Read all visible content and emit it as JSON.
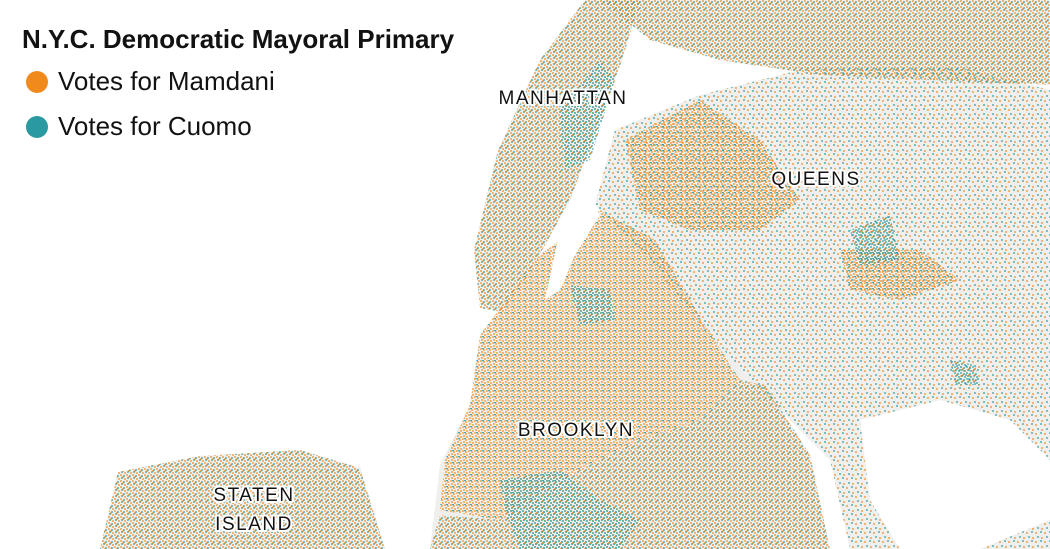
{
  "title": "N.Y.C. Democratic Mayoral Primary",
  "legend": [
    {
      "label": "Votes for Mamdani",
      "color": "#f08a1c"
    },
    {
      "label": "Votes for Cuomo",
      "color": "#2a9aa0"
    }
  ],
  "places": [
    {
      "label": "MANHATTAN"
    },
    {
      "label": "QUEENS"
    },
    {
      "label": "BROOKLYN"
    },
    {
      "label": "STATEN"
    },
    {
      "label": "ISLAND"
    }
  ]
}
